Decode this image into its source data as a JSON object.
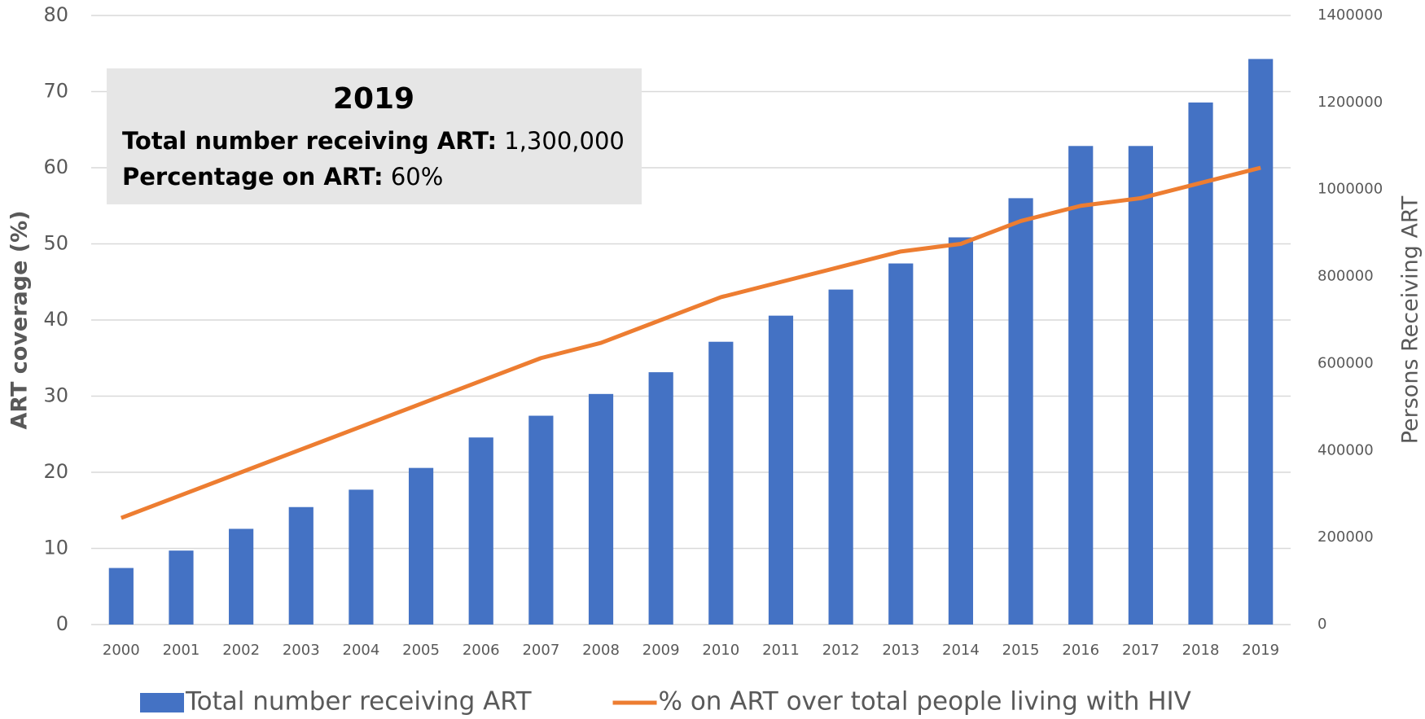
{
  "chart_data": {
    "type": "bar_line",
    "categories": [
      "2000",
      "2001",
      "2002",
      "2003",
      "2004",
      "2005",
      "2006",
      "2007",
      "2008",
      "2009",
      "2010",
      "2011",
      "2012",
      "2013",
      "2014",
      "2015",
      "2016",
      "2017",
      "2018",
      "2019"
    ],
    "series": [
      {
        "name": "Total number receiving ART",
        "type": "bar",
        "axis": "y2",
        "color": "#4472c4",
        "values": [
          130000,
          170000,
          220000,
          270000,
          310000,
          360000,
          430000,
          480000,
          530000,
          580000,
          650000,
          710000,
          770000,
          830000,
          890000,
          980000,
          1100000,
          1100000,
          1200000,
          1300000
        ]
      },
      {
        "name": "% on ART over total people living with HIV",
        "type": "line",
        "axis": "y",
        "color": "#ed7d31",
        "values": [
          14,
          17,
          20,
          23,
          26,
          29,
          32,
          35,
          37,
          40,
          43,
          45,
          47,
          49,
          50,
          53,
          55,
          56,
          58,
          60
        ]
      }
    ],
    "ylabel": "ART coverage (%)",
    "y2label": "Persons Receiving ART",
    "ylim": [
      0,
      80
    ],
    "yticks": [
      0,
      10,
      20,
      30,
      40,
      50,
      60,
      70,
      80
    ],
    "y2lim": [
      0,
      1400000
    ],
    "y2ticks": [
      0,
      200000,
      400000,
      600000,
      800000,
      1000000,
      1200000,
      1400000
    ],
    "grid": true,
    "legend": "bottom",
    "annotation": {
      "title": "2019",
      "lines": [
        {
          "label": "Total number receiving ART:",
          "value": "1,300,000"
        },
        {
          "label": "Percentage on ART:",
          "value": "60%"
        }
      ]
    }
  }
}
